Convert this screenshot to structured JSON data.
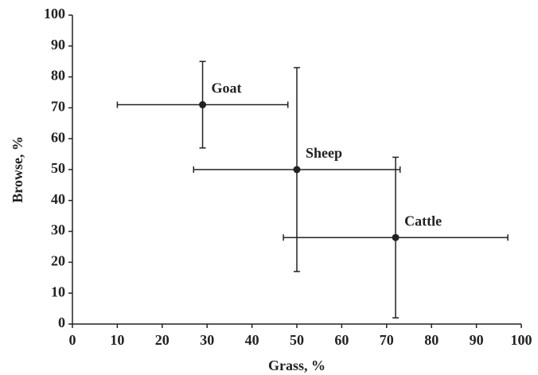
{
  "chart_data": {
    "type": "scatter",
    "xlabel": "Grass, %",
    "ylabel": "Browse, %",
    "xlim": [
      0,
      100
    ],
    "xticks": [
      0,
      10,
      20,
      30,
      40,
      50,
      60,
      70,
      80,
      90,
      100
    ],
    "ylim": [
      0,
      100
    ],
    "yticks": [
      0,
      10,
      20,
      30,
      40,
      50,
      60,
      70,
      80,
      90,
      100
    ],
    "grid": false,
    "series": [
      {
        "color": "#222222",
        "point_labels": [
          "Goat",
          "Sheep",
          "Cattle"
        ],
        "x": [
          29,
          50,
          72
        ],
        "values": [
          71,
          50,
          28
        ],
        "xerr": [
          19,
          23,
          25
        ],
        "yerr": [
          14,
          33,
          26
        ]
      }
    ]
  }
}
